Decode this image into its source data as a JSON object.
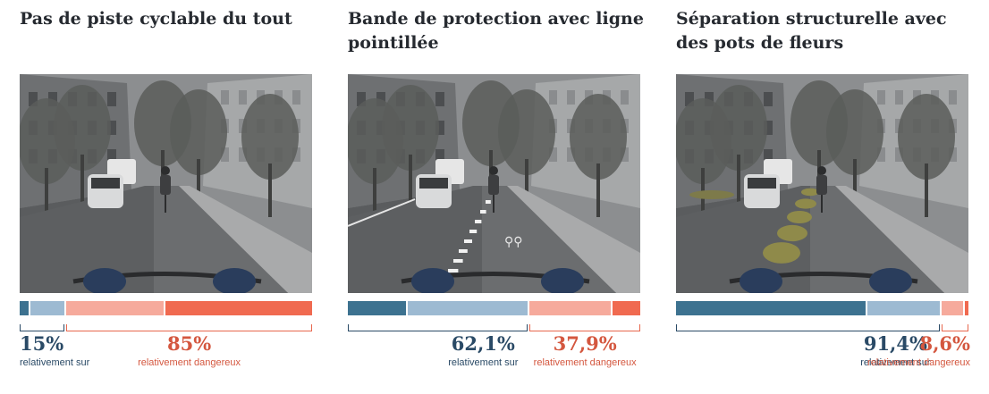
{
  "colors": {
    "very_safe": "#3d7290",
    "safe": "#9dbad2",
    "dangerous": "#f6aa9c",
    "very_dangerous": "#f06a50",
    "safe_text": "#2a4a66",
    "danger_text": "#d4573f"
  },
  "panels": [
    {
      "title": "Pas de piste cyclable du tout",
      "scene": "no-bike-lane",
      "segments": [
        3,
        12,
        34,
        51
      ],
      "safe_pct": "15%",
      "danger_pct": "85%",
      "safe_label": "relativement sur",
      "danger_label": "relativement dangereux"
    },
    {
      "title": "Bande de protection avec ligne pointillée",
      "scene": "dashed-line-lane",
      "segments": [
        20.4,
        41.7,
        28.4,
        9.5
      ],
      "safe_pct": "62,1%",
      "danger_pct": "37,9%",
      "safe_label": "relativement sur",
      "danger_label": "relativement dangereux"
    },
    {
      "title": "Séparation structurelle avec des pots de fleurs",
      "scene": "planter-separated-lane",
      "segments": [
        66.1,
        25.3,
        7.3,
        1.3
      ],
      "safe_pct": "91,4%",
      "danger_pct": "8,6%",
      "safe_label": "relativement sur",
      "danger_label": "relativement dangereux"
    }
  ]
}
